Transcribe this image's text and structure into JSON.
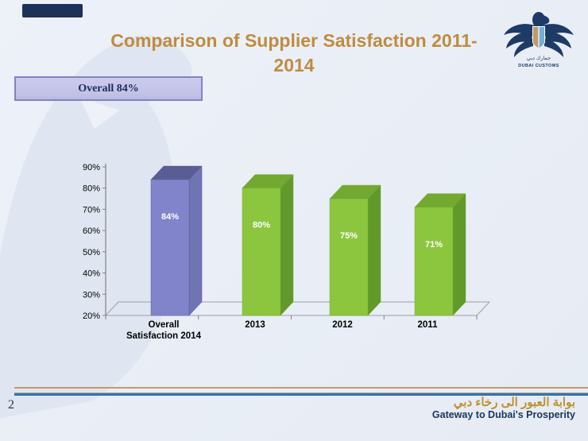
{
  "slide": {
    "background": "#EAEFF7"
  },
  "corner_accent": {
    "color": "#1E3156"
  },
  "title": {
    "lines": [
      "Comparison of Supplier Satisfaction 2011-",
      "2014"
    ],
    "color": "#BF8C3E"
  },
  "overall_badge": {
    "label": "Overall 84%"
  },
  "chart_data": {
    "type": "bar",
    "title": "Comparison of Supplier Satisfaction 2011-2014",
    "categories": [
      "Overall Satisfaction 2014",
      "2013",
      "2012",
      "2011"
    ],
    "category_label_lines": [
      [
        "Overall",
        "Satisfaction 2014"
      ],
      [
        "2013"
      ],
      [
        "2012"
      ],
      [
        "2011"
      ]
    ],
    "values": [
      84,
      80,
      75,
      71
    ],
    "data_labels": [
      "84%",
      "80%",
      "75%",
      "71%"
    ],
    "xlabel": "",
    "ylabel": "",
    "ylim": [
      20,
      90
    ],
    "ytick_step": 10,
    "ytick_labels": [
      "20%",
      "30%",
      "40%",
      "50%",
      "60%",
      "70%",
      "80%",
      "90%"
    ],
    "grid": false,
    "legend": false,
    "bar_style": "3d",
    "color_keys": [
      "highlight",
      "default",
      "default",
      "default"
    ],
    "colors": {
      "highlight": {
        "front": "#8184CB",
        "top": "#5A5D93",
        "side": "#7074B4"
      },
      "default": {
        "front": "#8CC63F",
        "top": "#73A930",
        "side": "#61992A"
      }
    },
    "label_color": "#FFFFFF",
    "axis_color": "#808080",
    "floor_color": "#9AA0A6",
    "tick_text_color": "#000000"
  },
  "logo": {
    "name_en": "DUBAI CUSTOMS",
    "name_ar": "جمارك دبي"
  },
  "footer": {
    "page_number": "2",
    "tagline_ar": "بوابة العبور الى رخاء دبي",
    "tagline_en": "Gateway to Dubai's Prosperity",
    "rule_tan": "#C49A6C",
    "rule_blue": "#2E74B5"
  }
}
